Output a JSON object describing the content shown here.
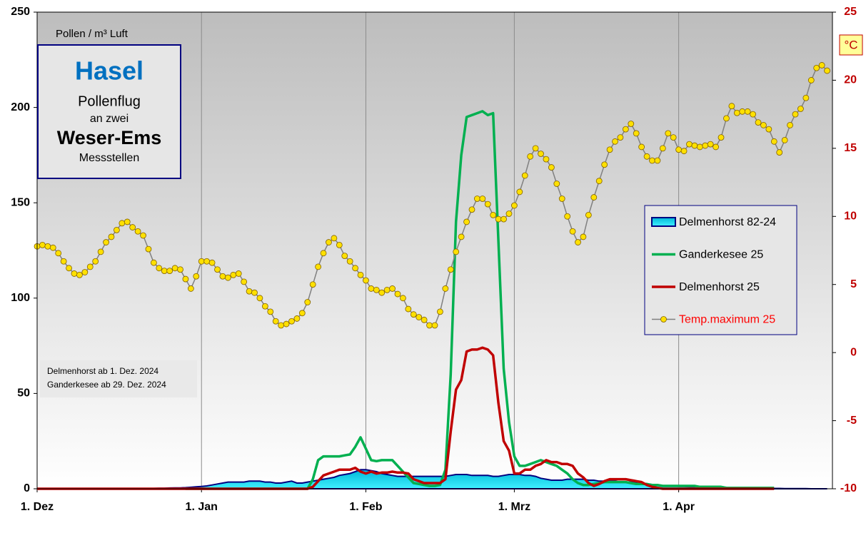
{
  "chart_data": {
    "type": "line",
    "y_label": "Pollen / m³ Luft",
    "y2_label": "°C",
    "panel": [
      "Hasel",
      "Pollenflug",
      "an zwei",
      "Weser-Ems",
      "Messstellen"
    ],
    "notes": [
      "Delmenhorst ab  1. Dez. 2024",
      "Ganderkesee ab 29. Dez. 2024"
    ],
    "x": [
      0,
      1,
      2,
      3,
      4,
      5,
      6,
      7,
      8,
      9,
      10,
      11,
      12,
      13,
      14,
      15,
      16,
      17,
      18,
      19,
      20,
      21,
      22,
      23,
      24,
      25,
      26,
      27,
      28,
      29,
      30,
      31,
      32,
      33,
      34,
      35,
      36,
      37,
      38,
      39,
      40,
      41,
      42,
      43,
      44,
      45,
      46,
      47,
      48,
      49,
      50,
      51,
      52,
      53,
      54,
      55,
      56,
      57,
      58,
      59,
      60,
      61,
      62,
      63,
      64,
      65,
      66,
      67,
      68,
      69,
      70,
      71,
      72,
      73,
      74,
      75,
      76,
      77,
      78,
      79,
      80,
      81,
      82,
      83,
      84,
      85,
      86,
      87,
      88,
      89,
      90,
      91,
      92,
      93,
      94,
      95,
      96,
      97,
      98,
      99,
      100,
      101,
      102,
      103,
      104,
      105,
      106,
      107,
      108,
      109,
      110,
      111,
      112,
      113,
      114,
      115,
      116,
      117,
      118,
      119,
      120,
      121,
      122,
      123,
      124,
      125,
      126,
      127,
      128,
      129,
      130,
      131,
      132,
      133,
      134,
      135,
      136,
      137,
      138,
      139,
      140,
      141,
      142,
      143,
      144,
      145,
      146,
      147,
      148,
      149
    ],
    "xlim": [
      0,
      150
    ],
    "xticks": [
      {
        "value": 0,
        "label": "1. Dez"
      },
      {
        "value": 31,
        "label": "1. Jan"
      },
      {
        "value": 62,
        "label": "1. Feb"
      },
      {
        "value": 90,
        "label": "1. Mrz"
      },
      {
        "value": 121,
        "label": "1. Apr"
      }
    ],
    "ylim": [
      0,
      250
    ],
    "yticks": [
      0,
      50,
      100,
      150,
      200,
      250
    ],
    "y2lim": [
      -10,
      25
    ],
    "y2ticks": [
      -10,
      -5,
      0,
      5,
      10,
      15,
      20,
      25
    ],
    "grid": "x",
    "legend": "right",
    "series": [
      {
        "name": "Delmenhorst 82-24",
        "type": "area",
        "color": "#00c8e6",
        "edge": "#000080",
        "values": [
          0,
          0,
          0,
          0,
          0,
          0,
          0,
          0,
          0,
          0,
          0,
          0,
          0,
          0,
          0,
          0,
          0,
          0,
          0,
          0,
          0,
          0,
          0.2,
          0.3,
          0.3,
          0.4,
          0.5,
          0.5,
          0.6,
          0.8,
          1,
          1.2,
          1.5,
          2,
          2.5,
          3,
          3.5,
          3.5,
          3.5,
          3.5,
          4,
          4,
          4,
          3.5,
          3.5,
          3,
          3,
          3.5,
          4,
          3,
          3,
          3.5,
          4,
          4.5,
          5,
          5.5,
          6,
          7,
          7.5,
          8,
          9,
          10,
          10,
          9.5,
          9,
          8,
          7.5,
          7,
          6.5,
          6.5,
          6.5,
          6.5,
          6.5,
          6.5,
          6.5,
          6.5,
          6.5,
          6.5,
          7,
          7.5,
          7.5,
          7.5,
          7,
          7,
          7,
          7,
          6.5,
          6.5,
          7,
          7.5,
          7.5,
          7.5,
          7,
          7,
          6.5,
          5.5,
          5,
          4.5,
          4.5,
          4.5,
          5,
          5,
          5,
          5,
          4.5,
          4.5,
          4,
          4,
          4,
          4,
          3.5,
          3.5,
          3.5,
          3,
          3,
          2.5,
          2,
          2,
          1.5,
          1.5,
          1.5,
          1.2,
          1.2,
          1,
          1,
          1,
          0.8,
          0.8,
          0.6,
          0.6,
          0.5,
          0.5,
          0.4,
          0.4,
          0.3,
          0.3,
          0.3,
          0.2,
          0.2,
          0.2,
          0.2,
          0.1,
          0.1,
          0.1,
          0.1,
          0.1,
          0,
          0,
          0,
          0
        ]
      },
      {
        "name": "Ganderkesee 25",
        "type": "line",
        "color": "#00b050",
        "values": [
          null,
          null,
          null,
          null,
          null,
          null,
          null,
          null,
          null,
          null,
          null,
          null,
          null,
          null,
          null,
          null,
          null,
          null,
          null,
          null,
          null,
          null,
          null,
          null,
          null,
          null,
          null,
          null,
          0,
          0,
          0,
          0,
          0,
          0,
          0,
          0,
          0,
          0,
          0,
          0,
          0,
          0,
          0,
          0,
          0,
          0,
          0,
          0,
          0,
          0,
          0,
          0,
          5,
          15,
          17,
          17,
          17,
          17,
          17.5,
          18,
          22,
          27,
          21,
          15,
          14.5,
          15,
          15,
          15,
          12,
          9,
          6,
          3,
          2.5,
          2,
          1.5,
          1.5,
          2,
          10,
          60,
          140,
          175,
          195,
          196,
          197,
          198,
          196,
          197,
          130,
          63,
          35,
          17,
          12,
          12,
          13,
          14,
          15,
          14,
          13,
          12,
          10,
          8,
          5,
          3,
          2,
          2,
          2.5,
          3,
          3.5,
          3.5,
          3.5,
          3.5,
          3.5,
          3,
          2.5,
          2.5,
          2.5,
          2,
          2,
          1.5,
          1.5,
          1.5,
          1.5,
          1.5,
          1.5,
          1.5,
          1,
          1,
          1,
          1,
          1,
          0.5,
          0.5,
          0.5,
          0.5,
          0.5,
          0.5,
          0.5,
          0.5,
          0.5,
          0.5,
          null,
          null,
          null,
          null,
          null,
          null,
          null,
          null,
          null,
          null
        ]
      },
      {
        "name": "Delmenhorst 25",
        "type": "line",
        "color": "#c00000",
        "values": [
          0,
          0,
          0,
          0,
          0,
          0,
          0,
          0,
          0,
          0,
          0,
          0,
          0,
          0,
          0,
          0,
          0,
          0,
          0,
          0,
          0,
          0,
          0,
          0,
          0,
          0,
          0,
          0,
          0,
          0,
          0,
          0,
          0,
          0,
          0,
          0,
          0,
          0,
          0,
          0,
          0,
          0,
          0,
          0,
          0,
          0,
          0,
          0,
          0,
          0,
          0,
          0,
          1,
          4,
          7,
          8,
          9,
          10,
          10,
          10,
          11,
          9,
          8,
          9,
          8,
          8.5,
          8.5,
          9,
          8.5,
          8.5,
          8,
          5,
          4,
          3,
          3,
          3,
          3,
          5,
          30,
          52,
          57,
          72,
          73,
          73,
          74,
          73,
          70,
          45,
          25,
          20,
          8,
          8,
          10,
          10,
          12,
          13,
          15,
          14,
          14,
          13,
          13,
          12,
          8,
          6,
          3,
          1.5,
          2.5,
          4,
          5,
          5,
          5,
          5,
          4.5,
          4,
          3.5,
          2,
          1,
          0.5,
          0,
          0,
          0,
          0,
          0,
          0,
          0,
          0,
          0,
          0,
          0,
          0,
          0,
          0,
          0,
          0,
          0,
          0,
          0,
          0,
          0,
          0,
          null,
          null,
          null,
          null,
          null,
          null,
          null,
          null,
          null,
          null
        ]
      },
      {
        "name": "Temp.maximum 25",
        "type": "line",
        "axis": "y2",
        "color": "#808080",
        "marker": "#ffe000",
        "label_color": "#ff0000",
        "values": [
          7.8,
          7.9,
          7.8,
          7.7,
          7.3,
          6.7,
          6.2,
          5.8,
          5.7,
          5.9,
          6.3,
          6.7,
          7.4,
          8.1,
          8.5,
          9.0,
          9.5,
          9.6,
          9.2,
          8.9,
          8.6,
          7.6,
          6.6,
          6.2,
          6.0,
          6.0,
          6.2,
          6.1,
          5.4,
          4.7,
          5.6,
          6.7,
          6.7,
          6.6,
          6.1,
          5.6,
          5.5,
          5.7,
          5.8,
          5.2,
          4.5,
          4.4,
          4.0,
          3.4,
          3.0,
          2.3,
          2.0,
          2.1,
          2.3,
          2.5,
          2.9,
          3.7,
          5.0,
          6.3,
          7.3,
          8.1,
          8.4,
          7.9,
          7.1,
          6.7,
          6.2,
          5.7,
          5.3,
          4.7,
          4.6,
          4.4,
          4.6,
          4.7,
          4.3,
          4.0,
          3.2,
          2.8,
          2.6,
          2.4,
          2.0,
          2.0,
          3.0,
          4.7,
          6.1,
          7.4,
          8.5,
          9.6,
          10.5,
          11.3,
          11.3,
          10.9,
          10.1,
          9.8,
          9.8,
          10.2,
          10.8,
          11.8,
          13.0,
          14.4,
          15.0,
          14.6,
          14.2,
          13.6,
          12.4,
          11.3,
          10.0,
          8.9,
          8.1,
          8.5,
          10.1,
          11.4,
          12.6,
          13.8,
          14.9,
          15.5,
          15.8,
          16.4,
          16.8,
          16.1,
          15.1,
          14.4,
          14.1,
          14.1,
          15.0,
          16.1,
          15.8,
          14.9,
          14.8,
          15.3,
          15.2,
          15.1,
          15.2,
          15.3,
          15.1,
          15.8,
          17.2,
          18.1,
          17.6,
          17.7,
          17.7,
          17.5,
          16.9,
          16.7,
          16.4,
          15.5,
          14.7,
          15.6,
          16.7,
          17.5,
          17.9,
          18.7,
          20.0,
          20.9,
          21.1,
          20.7
        ]
      }
    ]
  }
}
